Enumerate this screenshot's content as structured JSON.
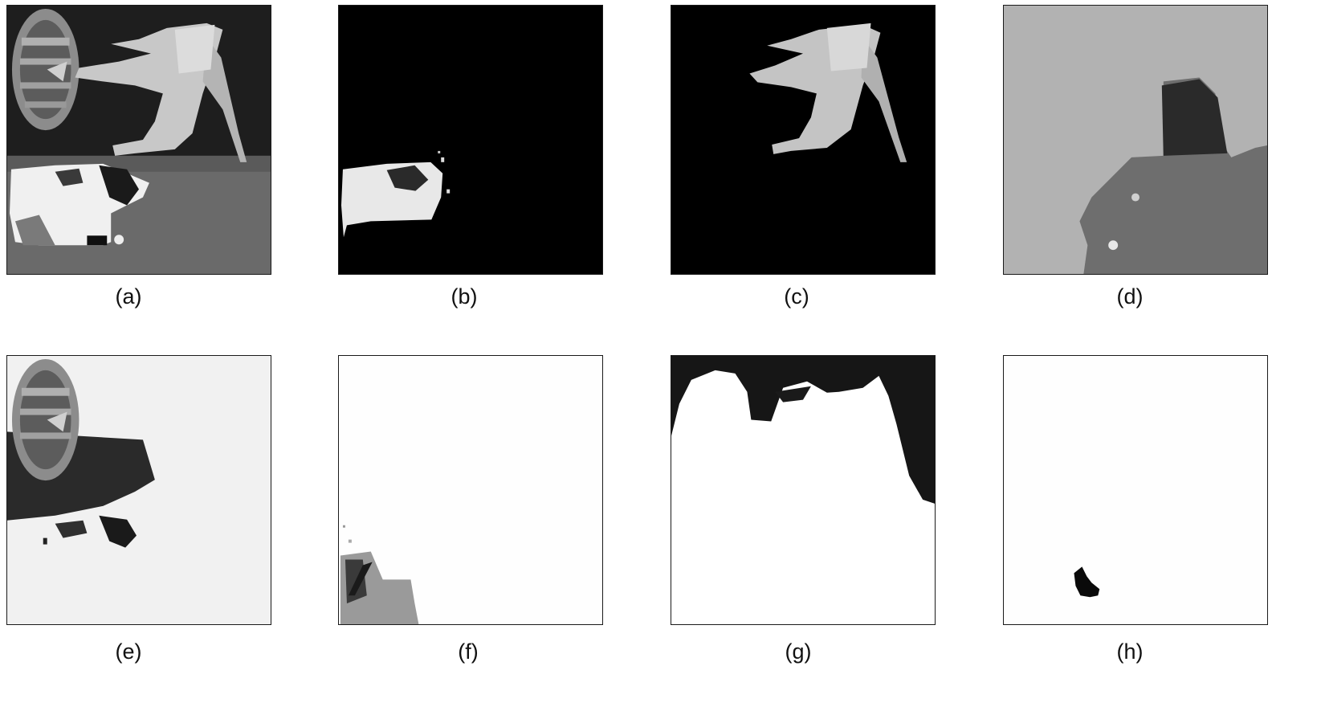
{
  "figure": {
    "panels": [
      {
        "caption": "(a)",
        "content": "original grayscale frame"
      },
      {
        "caption": "(b)",
        "content": "segmented layer: lower player on black"
      },
      {
        "caption": "(c)",
        "content": "segmented layer: upper player on black"
      },
      {
        "caption": "(d)",
        "content": "segmented layer: ground region on gray"
      },
      {
        "caption": "(e)",
        "content": "segmented layer: logo and dark region on light gray"
      },
      {
        "caption": "(f)",
        "content": "segmented layer: small gray region on white"
      },
      {
        "caption": "(g)",
        "content": "segmented layer: dark top region on white"
      },
      {
        "caption": "(h)",
        "content": "segmented layer: small dark blob on white"
      }
    ]
  }
}
